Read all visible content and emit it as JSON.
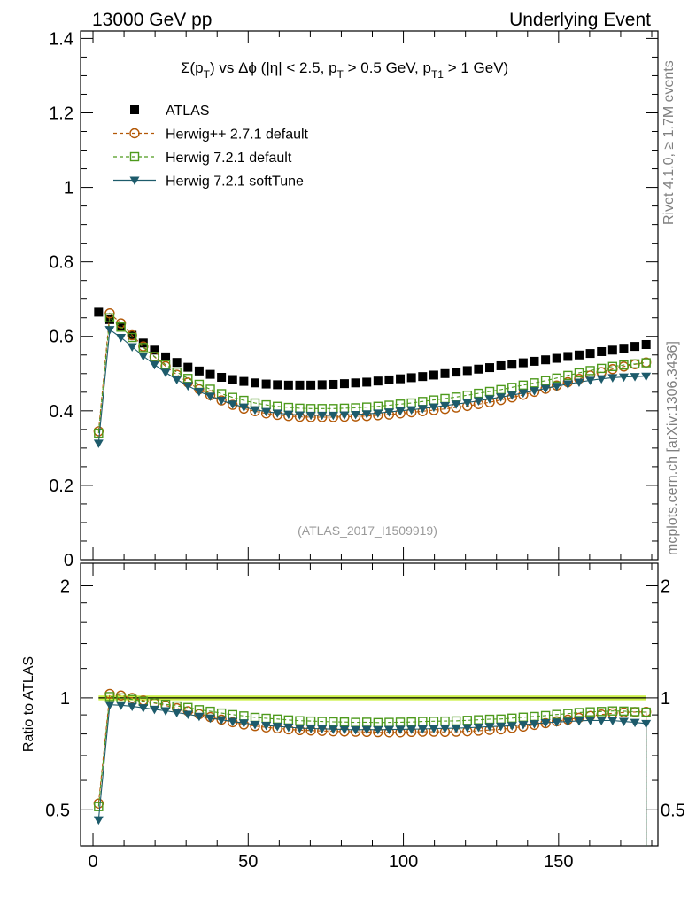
{
  "header": {
    "left": "13000 GeV pp",
    "right": "Underlying Event"
  },
  "side": {
    "rivet": "Rivet 4.1.0, ≥ 1.7M events",
    "mcplots": "mcplots.cern.ch [arXiv:1306.3436]"
  },
  "plot_title": {
    "sigma": "Σ(p",
    "sub_T": "T",
    "vs": ") vs Δϕ (|η| < 2.5, p",
    "sub_T2": "T",
    "mid": " > 0.5 GeV, p",
    "sub_T1": "T1",
    "tail": " > 1 GeV)"
  },
  "watermark": "(ATLAS_2017_I1509919)",
  "ratio_ylabel": "Ratio to ATLAS",
  "colors": {
    "atlas": "#000000",
    "herwigpp": "#b35806",
    "herwig721": "#4d9a1c",
    "softtune": "#1d5b6b",
    "band": "#ccf04a"
  },
  "chart_data": [
    {
      "type": "scatter",
      "panel": "main",
      "xlabel": "",
      "ylabel": "",
      "xlim": [
        -4,
        182
      ],
      "ylim": [
        0,
        1.42
      ],
      "yticks": [
        0,
        0.2,
        0.4,
        0.6,
        0.8,
        1,
        1.2,
        1.4
      ],
      "ytick_labels": [
        "0",
        "0.2",
        "0.4",
        "0.6",
        "0.8",
        "1",
        "1.2",
        "1.4"
      ],
      "legend": [
        "ATLAS",
        "Herwig++ 2.7.1 default",
        "Herwig 7.2.1 default",
        "Herwig 7.2.1 softTune"
      ],
      "legend_position": "top-left",
      "x": [
        1.8,
        5.4,
        9,
        12.6,
        16.2,
        19.8,
        23.4,
        27,
        30.6,
        34.2,
        37.8,
        41.4,
        45,
        48.6,
        52.2,
        55.8,
        59.4,
        63,
        66.6,
        70.2,
        73.8,
        77.4,
        81,
        84.6,
        88.2,
        91.8,
        95.4,
        99,
        102.6,
        106.2,
        109.8,
        113.4,
        117,
        120.6,
        124.2,
        127.8,
        131.4,
        135,
        138.6,
        142.2,
        145.8,
        149.4,
        153,
        156.6,
        160.2,
        163.8,
        167.4,
        171,
        174.6,
        178.2
      ],
      "series": [
        {
          "name": "ATLAS",
          "marker": "square-filled",
          "values": [
            0.665,
            0.645,
            0.625,
            0.603,
            0.582,
            0.563,
            0.545,
            0.53,
            0.517,
            0.507,
            0.498,
            0.49,
            0.484,
            0.479,
            0.475,
            0.472,
            0.47,
            0.469,
            0.469,
            0.469,
            0.47,
            0.471,
            0.473,
            0.475,
            0.477,
            0.48,
            0.483,
            0.486,
            0.489,
            0.492,
            0.496,
            0.5,
            0.504,
            0.508,
            0.512,
            0.516,
            0.521,
            0.525,
            0.529,
            0.533,
            0.537,
            0.541,
            0.546,
            0.55,
            0.554,
            0.559,
            0.563,
            0.568,
            0.573,
            0.578
          ]
        },
        {
          "name": "Herwig++ 2.7.1 default",
          "marker": "circle-open",
          "values": [
            0.345,
            0.662,
            0.635,
            0.603,
            0.573,
            0.545,
            0.52,
            0.497,
            0.476,
            0.458,
            0.442,
            0.428,
            0.416,
            0.406,
            0.399,
            0.393,
            0.389,
            0.386,
            0.384,
            0.383,
            0.383,
            0.383,
            0.384,
            0.385,
            0.386,
            0.388,
            0.39,
            0.393,
            0.396,
            0.399,
            0.402,
            0.405,
            0.409,
            0.413,
            0.418,
            0.423,
            0.429,
            0.436,
            0.443,
            0.451,
            0.459,
            0.468,
            0.477,
            0.486,
            0.495,
            0.504,
            0.512,
            0.519,
            0.525,
            0.53
          ]
        },
        {
          "name": "Herwig 7.2.1 default",
          "marker": "square-open",
          "values": [
            0.34,
            0.65,
            0.625,
            0.597,
            0.57,
            0.546,
            0.524,
            0.504,
            0.487,
            0.471,
            0.458,
            0.446,
            0.436,
            0.428,
            0.421,
            0.416,
            0.412,
            0.409,
            0.407,
            0.406,
            0.406,
            0.406,
            0.407,
            0.408,
            0.41,
            0.412,
            0.415,
            0.418,
            0.421,
            0.425,
            0.429,
            0.433,
            0.437,
            0.442,
            0.447,
            0.452,
            0.457,
            0.463,
            0.469,
            0.475,
            0.481,
            0.488,
            0.495,
            0.502,
            0.508,
            0.514,
            0.519,
            0.523,
            0.526,
            0.529
          ]
        },
        {
          "name": "Herwig 7.2.1 softTune",
          "marker": "triangle-down-filled",
          "values": [
            0.313,
            0.618,
            0.597,
            0.572,
            0.547,
            0.524,
            0.503,
            0.484,
            0.467,
            0.452,
            0.439,
            0.428,
            0.418,
            0.41,
            0.403,
            0.398,
            0.394,
            0.391,
            0.389,
            0.388,
            0.388,
            0.388,
            0.389,
            0.39,
            0.392,
            0.394,
            0.397,
            0.4,
            0.403,
            0.406,
            0.41,
            0.414,
            0.418,
            0.422,
            0.427,
            0.432,
            0.437,
            0.442,
            0.448,
            0.454,
            0.46,
            0.466,
            0.472,
            0.477,
            0.482,
            0.486,
            0.489,
            0.491,
            0.492,
            0.493
          ]
        }
      ]
    },
    {
      "type": "line",
      "panel": "ratio",
      "xlabel": "",
      "ylabel": "Ratio to ATLAS",
      "xlim": [
        -4,
        182
      ],
      "ylim": [
        0.4,
        2.3
      ],
      "ylog": true,
      "yticks": [
        0.5,
        1,
        2
      ],
      "ytick_labels": [
        "0.5",
        "1",
        "2"
      ],
      "xticks": [
        0,
        50,
        100,
        150
      ],
      "xtick_labels": [
        "0",
        "50",
        "100",
        "150"
      ],
      "reference_band": [
        0.985,
        1.015
      ],
      "x": [
        1.8,
        5.4,
        9,
        12.6,
        16.2,
        19.8,
        23.4,
        27,
        30.6,
        34.2,
        37.8,
        41.4,
        45,
        48.6,
        52.2,
        55.8,
        59.4,
        63,
        66.6,
        70.2,
        73.8,
        77.4,
        81,
        84.6,
        88.2,
        91.8,
        95.4,
        99,
        102.6,
        106.2,
        109.8,
        113.4,
        117,
        120.6,
        124.2,
        127.8,
        131.4,
        135,
        138.6,
        142.2,
        145.8,
        149.4,
        153,
        156.6,
        160.2,
        163.8,
        167.4,
        171,
        174.6,
        178.2
      ],
      "series": [
        {
          "name": "Herwig++ 2.7.1 default",
          "marker": "circle-open",
          "values": [
            0.52,
            1.025,
            1.015,
            1.0,
            0.984,
            0.968,
            0.954,
            0.938,
            0.921,
            0.904,
            0.888,
            0.874,
            0.86,
            0.848,
            0.84,
            0.833,
            0.828,
            0.823,
            0.819,
            0.817,
            0.815,
            0.813,
            0.812,
            0.811,
            0.81,
            0.809,
            0.808,
            0.808,
            0.81,
            0.811,
            0.811,
            0.81,
            0.811,
            0.813,
            0.816,
            0.82,
            0.823,
            0.83,
            0.837,
            0.846,
            0.855,
            0.865,
            0.874,
            0.884,
            0.894,
            0.902,
            0.909,
            0.914,
            0.916,
            0.917
          ]
        },
        {
          "name": "Herwig 7.2.1 default",
          "marker": "square-open",
          "values": [
            0.51,
            1.008,
            1.0,
            0.99,
            0.979,
            0.97,
            0.961,
            0.951,
            0.942,
            0.929,
            0.92,
            0.91,
            0.901,
            0.894,
            0.886,
            0.881,
            0.877,
            0.872,
            0.868,
            0.866,
            0.864,
            0.862,
            0.861,
            0.859,
            0.86,
            0.858,
            0.859,
            0.86,
            0.861,
            0.864,
            0.865,
            0.866,
            0.867,
            0.87,
            0.873,
            0.876,
            0.877,
            0.882,
            0.887,
            0.891,
            0.896,
            0.902,
            0.907,
            0.913,
            0.917,
            0.919,
            0.922,
            0.921,
            0.918,
            0.915
          ]
        },
        {
          "name": "Herwig 7.2.1 softTune",
          "marker": "triangle-down-filled",
          "values": [
            0.47,
            0.958,
            0.955,
            0.949,
            0.94,
            0.931,
            0.923,
            0.913,
            0.903,
            0.892,
            0.882,
            0.873,
            0.864,
            0.856,
            0.848,
            0.843,
            0.838,
            0.834,
            0.829,
            0.827,
            0.826,
            0.824,
            0.822,
            0.821,
            0.822,
            0.821,
            0.822,
            0.823,
            0.824,
            0.825,
            0.827,
            0.828,
            0.829,
            0.831,
            0.834,
            0.837,
            0.839,
            0.842,
            0.847,
            0.852,
            0.857,
            0.861,
            0.864,
            0.867,
            0.87,
            0.869,
            0.869,
            0.864,
            0.859,
            0.853
          ]
        }
      ]
    }
  ]
}
